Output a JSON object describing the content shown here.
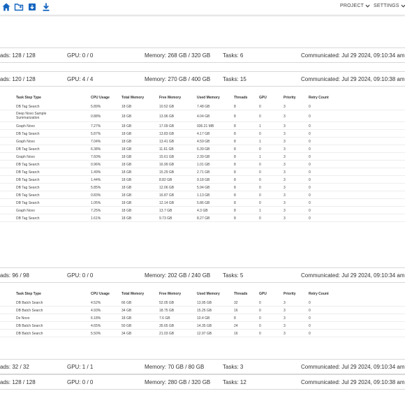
{
  "toolbar": {
    "icons": [
      "home-icon",
      "folder-icon",
      "import-icon",
      "download-icon"
    ],
    "project_label": "PROJECT",
    "settings_label": "SETTINGS"
  },
  "nodes": [
    {
      "summary": {
        "threads": "ads: 128 / 128",
        "gpu": "GPU: 0 / 0",
        "memory": "Memory: 268 GB / 320 GB",
        "tasks": "Tasks: 6",
        "communicated": "Communicated: Jul 29 2024, 09:10:34 am"
      }
    },
    {
      "summary": {
        "threads": "ads: 120 / 128",
        "gpu": "GPU: 4 / 4",
        "memory": "Memory: 270 GB / 400 GB",
        "tasks": "Tasks: 15",
        "communicated": "Communicated: Jul 29 2024, 09:10:38 am"
      },
      "columns": {
        "type": "Task Step Type",
        "cpu": "CPU Usage",
        "total": "Total Memory",
        "free": "Free Memory",
        "used": "Used Memory",
        "threads": "Threads",
        "gpu": "GPU",
        "priority": "Priority",
        "retry": "Retry Count"
      },
      "rows": [
        {
          "lead": "",
          "type": "DB Tag Search",
          "cpu": "5.89%",
          "total": "18 GB",
          "free": "10.52 GB",
          "used": "7.48 GB",
          "threads": "8",
          "gpu": "0",
          "priority": "3",
          "retry": "0"
        },
        {
          "lead": "",
          "type": "Deep Novo Sample Summarization",
          "cpu": "0.88%",
          "total": "18 GB",
          "free": "13.96 GB",
          "used": "4.04 GB",
          "threads": "8",
          "gpu": "0",
          "priority": "3",
          "retry": "0"
        },
        {
          "lead": "",
          "type": "Graph Novo",
          "cpu": "7.27%",
          "total": "18 GB",
          "free": "17.09 GB",
          "used": "936.21 MB",
          "threads": "8",
          "gpu": "1",
          "priority": "3",
          "retry": "0"
        },
        {
          "lead": "",
          "type": "DB Tag Search",
          "cpu": "5.87%",
          "total": "18 GB",
          "free": "13.83 GB",
          "used": "4.17 GB",
          "threads": "8",
          "gpu": "0",
          "priority": "3",
          "retry": "0"
        },
        {
          "lead": "",
          "type": "Graph Novo",
          "cpu": "7.04%",
          "total": "18 GB",
          "free": "13.41 GB",
          "used": "4.59 GB",
          "threads": "8",
          "gpu": "1",
          "priority": "3",
          "retry": "0"
        },
        {
          "lead": "",
          "type": "DB Tag Search",
          "cpu": "6.38%",
          "total": "18 GB",
          "free": "11.61 GB",
          "used": "6.39 GB",
          "threads": "8",
          "gpu": "0",
          "priority": "3",
          "retry": "0"
        },
        {
          "lead": "",
          "type": "Graph Novo",
          "cpu": "7.60%",
          "total": "18 GB",
          "free": "15.61 GB",
          "used": "2.39 GB",
          "threads": "8",
          "gpu": "1",
          "priority": "3",
          "retry": "0"
        },
        {
          "lead": "",
          "type": "DB Tag Search",
          "cpu": "0.96%",
          "total": "18 GB",
          "free": "16.99 GB",
          "used": "1.01 GB",
          "threads": "8",
          "gpu": "0",
          "priority": "3",
          "retry": "0"
        },
        {
          "lead": "",
          "type": "DB Tag Search",
          "cpu": "1.49%",
          "total": "18 GB",
          "free": "15.29 GB",
          "used": "2.71 GB",
          "threads": "8",
          "gpu": "0",
          "priority": "3",
          "retry": "0"
        },
        {
          "lead": "",
          "type": "DB Tag Search",
          "cpu": "1.44%",
          "total": "18 GB",
          "free": "8.82 GB",
          "used": "9.18 GB",
          "threads": "8",
          "gpu": "0",
          "priority": "3",
          "retry": "0"
        },
        {
          "lead": "",
          "type": "DB Tag Search",
          "cpu": "5.85%",
          "total": "18 GB",
          "free": "12.06 GB",
          "used": "5.94 GB",
          "threads": "8",
          "gpu": "0",
          "priority": "3",
          "retry": "0"
        },
        {
          "lead": "",
          "type": "DB Tag Search",
          "cpu": "0.83%",
          "total": "18 GB",
          "free": "16.87 GB",
          "used": "1.13 GB",
          "threads": "8",
          "gpu": "0",
          "priority": "3",
          "retry": "0"
        },
        {
          "lead": "",
          "type": "DB Tag Search",
          "cpu": "1.05%",
          "total": "18 GB",
          "free": "12.14 GB",
          "used": "5.86 GB",
          "threads": "8",
          "gpu": "0",
          "priority": "3",
          "retry": "0"
        },
        {
          "lead": "",
          "type": "Graph Novo",
          "cpu": "7.25%",
          "total": "18 GB",
          "free": "13.7 GB",
          "used": "4.3 GB",
          "threads": "8",
          "gpu": "1",
          "priority": "3",
          "retry": "0"
        },
        {
          "lead": "",
          "type": "DB Tag Search",
          "cpu": "1.61%",
          "total": "18 GB",
          "free": "9.73 GB",
          "used": "8.27 GB",
          "threads": "8",
          "gpu": "0",
          "priority": "3",
          "retry": "0"
        }
      ]
    },
    {
      "summary": {
        "threads": "ads: 96 / 98",
        "gpu": "GPU: 0 / 0",
        "memory": "Memory: 202 GB / 240 GB",
        "tasks": "Tasks: 5",
        "communicated": "Communicated: Jul 29 2024, 09:10:34 am"
      },
      "columns": {
        "type": "Task Step Type",
        "cpu": "CPU Usage",
        "total": "Total Memory",
        "free": "Free Memory",
        "used": "Used Memory",
        "threads": "Threads",
        "gpu": "GPU",
        "priority": "Priority",
        "retry": "Retry Count"
      },
      "rows": [
        {
          "lead": "",
          "type": "DB Batch Search",
          "cpu": "4.52%",
          "total": "66 GB",
          "free": "52.05 GB",
          "used": "13.95 GB",
          "threads": "32",
          "gpu": "0",
          "priority": "3",
          "retry": "0"
        },
        {
          "lead": "",
          "type": "DB Batch Search",
          "cpu": "4.93%",
          "total": "34 GB",
          "free": "18.75 GB",
          "used": "15.25 GB",
          "threads": "16",
          "gpu": "0",
          "priority": "3",
          "retry": "0"
        },
        {
          "lead": "",
          "type": "De Novo",
          "cpu": "6.18%",
          "total": "18 GB",
          "free": "7.6 GB",
          "used": "10.4 GB",
          "threads": "8",
          "gpu": "0",
          "priority": "3",
          "retry": "0"
        },
        {
          "lead": "",
          "type": "DB Batch Search",
          "cpu": "4.65%",
          "total": "50 GB",
          "free": "35.65 GB",
          "used": "14.35 GB",
          "threads": "24",
          "gpu": "0",
          "priority": "3",
          "retry": "0"
        },
        {
          "lead": "",
          "type": "DB Batch Search",
          "cpu": "5.50%",
          "total": "34 GB",
          "free": "21.03 GB",
          "used": "12.97 GB",
          "threads": "16",
          "gpu": "0",
          "priority": "3",
          "retry": "0"
        }
      ]
    },
    {
      "summary": {
        "threads": "ads: 32 / 32",
        "gpu": "GPU: 1 / 1",
        "memory": "Memory: 70 GB / 80 GB",
        "tasks": "Tasks: 3",
        "communicated": "Communicated: Jul 29 2024, 09:10:34 am"
      }
    },
    {
      "summary": {
        "threads": "ads: 128 / 128",
        "gpu": "GPU: 0 / 0",
        "memory": "Memory: 280 GB / 320 GB",
        "tasks": "Tasks: 12",
        "communicated": "Communicated: Jul 29 2024, 09:10:38 am"
      }
    }
  ]
}
